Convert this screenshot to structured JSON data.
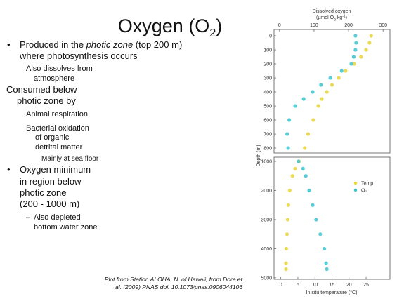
{
  "slide": {
    "title": [
      "Oxygen (O",
      "2",
      ")"
    ],
    "lines": [
      {
        "bullet": "•",
        "parts": [
          "Produced in the ",
          "photic zone",
          " (top 200 m)"
        ]
      },
      {
        "parts": [
          "where photosynthesis occurs"
        ]
      },
      {
        "parts": [
          "Also dissolves from"
        ]
      },
      {
        "parts": [
          "atmosphere"
        ]
      },
      {
        "parts": [
          "Consumed below"
        ]
      },
      {
        "parts": [
          "photic zone by"
        ]
      },
      {
        "parts": [
          "Animal respiration"
        ]
      },
      {
        "parts": [
          "Bacterial oxidation"
        ]
      },
      {
        "parts": [
          "of organic"
        ]
      },
      {
        "parts": [
          "detrital matter"
        ]
      },
      {
        "parts": [
          "Mainly at sea floor"
        ]
      },
      {
        "bullet": "•",
        "parts": [
          "Oxygen minimum"
        ]
      },
      {
        "parts": [
          "in region below"
        ]
      },
      {
        "parts": [
          "photic zone"
        ]
      },
      {
        "parts": [
          "(200 - 1000 m)"
        ]
      },
      {
        "bullet": "–",
        "parts": [
          "Also depleted"
        ]
      },
      {
        "parts": [
          "bottom water zone"
        ]
      }
    ],
    "caption": [
      "Plot from Station ALOHA, N. of Hawaii, from Dore et",
      "al. (2009) PNAS doi: 10.1073/pnas.0906044106"
    ]
  },
  "chart_data": {
    "type": "scatter",
    "x2label": [
      "Dissolved oxygen",
      "(µmol O",
      "2",
      " kg",
      "-1",
      ")"
    ],
    "xlabel": "In situ temperature (°C)",
    "ylabel": "Depth (m)",
    "xlim": [
      -2,
      32
    ],
    "xticks": [
      0,
      5,
      10,
      15,
      20,
      25
    ],
    "x2lim": [
      -16,
      320
    ],
    "x2ticks": [
      0,
      100,
      200,
      300
    ],
    "panels": [
      {
        "ylim": [
          -45,
          835
        ],
        "yticks": [
          0,
          100,
          200,
          300,
          400,
          500,
          600,
          700,
          800
        ]
      },
      {
        "ylim": [
          855,
          5050
        ],
        "yticks": [
          1000,
          2000,
          3000,
          4000,
          5000
        ]
      }
    ],
    "series": [
      {
        "name": "Temp",
        "color": "#e8d43a",
        "axis": "x",
        "depth": [
          0,
          50,
          100,
          150,
          200,
          250,
          300,
          350,
          400,
          450,
          500,
          600,
          700,
          800,
          1000,
          1250,
          1500,
          2000,
          2500,
          3000,
          3500,
          4000,
          4500,
          4700
        ],
        "values": [
          26.5,
          26,
          25,
          23.5,
          21.5,
          19,
          17,
          15,
          13.5,
          12,
          11,
          9.5,
          8,
          7,
          5.3,
          4.2,
          3.4,
          2.6,
          2.2,
          2,
          1.8,
          1.6,
          1.5,
          1.5
        ]
      },
      {
        "name": "O₂",
        "color": "#3cc4d0",
        "axis": "x2",
        "depth": [
          0,
          50,
          100,
          150,
          200,
          250,
          300,
          350,
          400,
          450,
          500,
          600,
          700,
          800,
          1000,
          1250,
          1500,
          2000,
          2500,
          3000,
          3500,
          4000,
          4500,
          4700
        ],
        "values": [
          220,
          222,
          220,
          215,
          208,
          180,
          147,
          120,
          96,
          70,
          45,
          28,
          22,
          25,
          55,
          68,
          76,
          86,
          96,
          106,
          118,
          130,
          135,
          137
        ]
      }
    ],
    "legend": "right"
  }
}
